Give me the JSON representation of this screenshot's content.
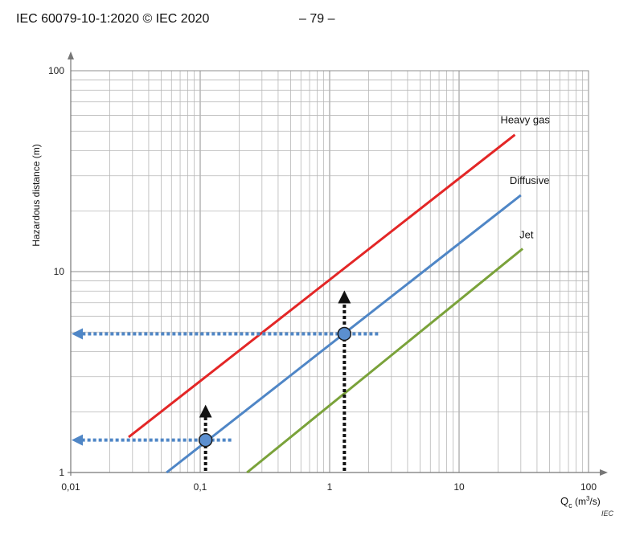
{
  "header": {
    "doc_ref": "IEC 60079-10-1:2020 © IEC 2020",
    "page_number": "– 79 –"
  },
  "colors": {
    "heavy_gas": "#e32626",
    "diffusive": "#4f86c6",
    "jet": "#7aa23a",
    "marker_fill": "#5b8fd0",
    "dotted_blue": "#4f86c6",
    "grid": "#b7b7b7"
  },
  "chart_data": {
    "type": "line",
    "xscale": "log",
    "yscale": "log",
    "xlim": [
      0.01,
      100
    ],
    "ylim": [
      1,
      100
    ],
    "grid": true,
    "xlabel_main": "Q",
    "xlabel_sub": "c",
    "xlabel_unit": "(m",
    "xlabel_unit_sup": "3",
    "xlabel_unit_end": "/s)",
    "ylabel": "Hazardous distance  (m)",
    "x_ticks": [
      {
        "value": 0.01,
        "label": "0,01"
      },
      {
        "value": 0.1,
        "label": "0,1"
      },
      {
        "value": 1,
        "label": "1"
      },
      {
        "value": 10,
        "label": "10"
      },
      {
        "value": 100,
        "label": "100"
      }
    ],
    "y_ticks": [
      {
        "value": 1,
        "label": "1"
      },
      {
        "value": 10,
        "label": "10"
      },
      {
        "value": 100,
        "label": "100"
      }
    ],
    "series": [
      {
        "name": "Heavy gas",
        "x": [
          0.028,
          27
        ],
        "y": [
          1.5,
          48
        ]
      },
      {
        "name": "Diffusive",
        "x": [
          0.055,
          30
        ],
        "y": [
          1.0,
          24
        ]
      },
      {
        "name": "Jet",
        "x": [
          0.23,
          31
        ],
        "y": [
          1.0,
          13
        ]
      }
    ],
    "annotations": [
      {
        "x": 0.11,
        "y": 1.45
      },
      {
        "x": 1.3,
        "y": 4.9
      }
    ],
    "watermark": "IEC"
  }
}
